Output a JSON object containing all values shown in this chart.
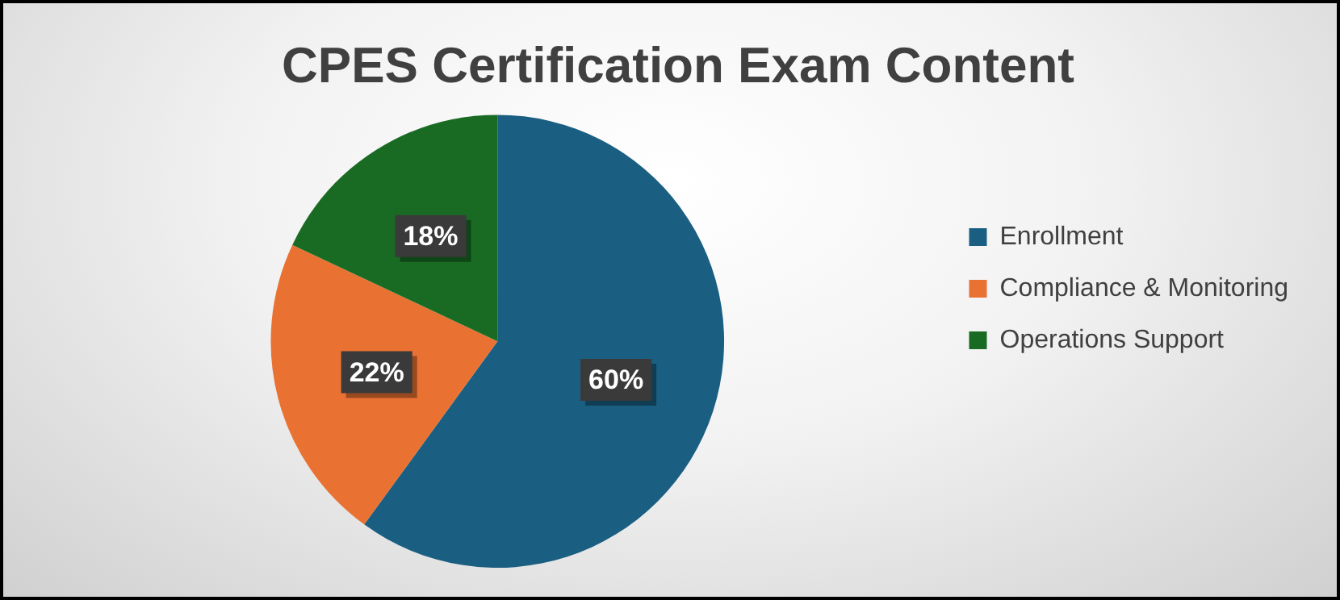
{
  "chart_data": {
    "type": "pie",
    "title": "CPES Certification Exam Content",
    "categories": [
      "Enrollment",
      "Compliance & Monitoring",
      "Operations Support"
    ],
    "values": [
      60,
      22,
      18
    ],
    "colors": [
      "#1a5f82",
      "#e97132",
      "#196b24"
    ],
    "value_labels": [
      "60%",
      "22%",
      "18%"
    ],
    "legend": "right"
  }
}
